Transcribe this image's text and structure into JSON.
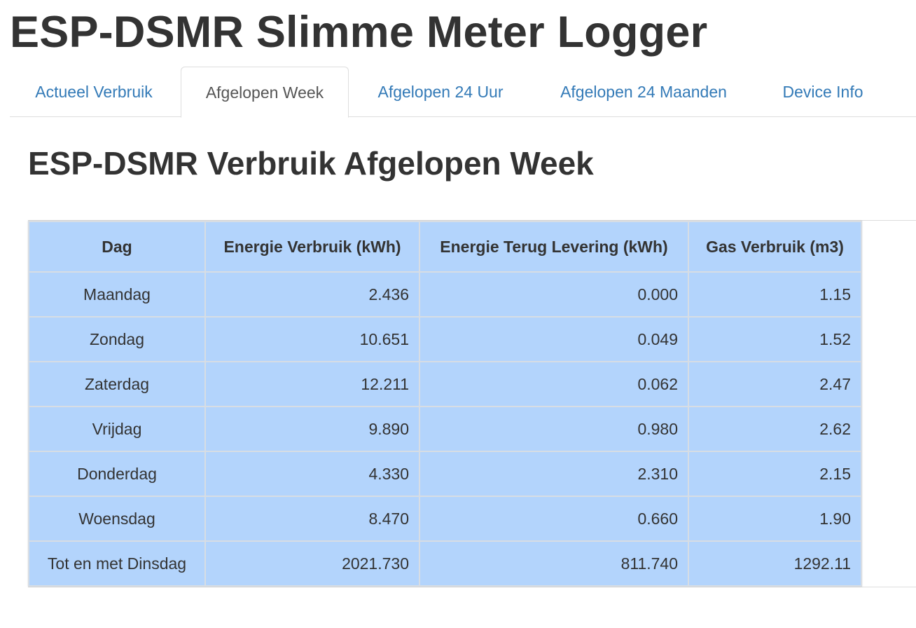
{
  "app": {
    "title": "ESP-DSMR Slimme Meter Logger"
  },
  "tabs": [
    {
      "label": "Actueel Verbruik",
      "active": false
    },
    {
      "label": "Afgelopen Week",
      "active": true
    },
    {
      "label": "Afgelopen 24 Uur",
      "active": false
    },
    {
      "label": "Afgelopen 24 Maanden",
      "active": false
    },
    {
      "label": "Device Info",
      "active": false
    }
  ],
  "main": {
    "heading": "ESP-DSMR Verbruik Afgelopen Week",
    "table": {
      "headers": [
        "Dag",
        "Energie Verbruik (kWh)",
        "Energie Terug Levering (kWh)",
        "Gas Verbruik (m3)"
      ],
      "rows": [
        [
          "Maandag",
          "2.436",
          "0.000",
          "1.15"
        ],
        [
          "Zondag",
          "10.651",
          "0.049",
          "1.52"
        ],
        [
          "Zaterdag",
          "12.211",
          "0.062",
          "2.47"
        ],
        [
          "Vrijdag",
          "9.890",
          "0.980",
          "2.62"
        ],
        [
          "Donderdag",
          "4.330",
          "2.310",
          "2.15"
        ],
        [
          "Woensdag",
          "8.470",
          "0.660",
          "1.90"
        ],
        [
          "Tot en met Dinsdag",
          "2021.730",
          "811.740",
          "1292.11"
        ]
      ]
    }
  },
  "colors": {
    "link": "#337ab7",
    "table_background": "#b3d4fc",
    "text": "#333333"
  }
}
